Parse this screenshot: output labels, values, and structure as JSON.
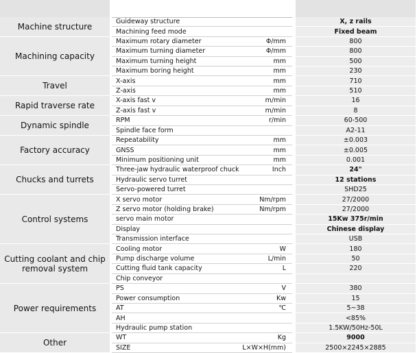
{
  "table": {
    "groups": [
      {
        "label": "Machine structure",
        "rows": [
          {
            "name": "Guideway structure",
            "value": "X, z rails",
            "bold": true
          },
          {
            "name": "Machining feed mode",
            "value": "Fixed beam",
            "bold": true
          }
        ]
      },
      {
        "label": "Machining capacity",
        "rows": [
          {
            "name": "Maximum rotary diameter",
            "unit": "Φ/mm",
            "value": "800"
          },
          {
            "name": "Maximum turning diameter",
            "unit": "Φ/mm",
            "value": "800"
          },
          {
            "name": "Maximum turning height",
            "unit": "mm",
            "value": "500"
          },
          {
            "name": "Maximum boring height",
            "unit": "mm",
            "value": "230"
          }
        ]
      },
      {
        "label": "Travel",
        "rows": [
          {
            "name": "X-axis",
            "unit": "mm",
            "value": "710"
          },
          {
            "name": "Z-axis",
            "unit": "mm",
            "value": "510"
          }
        ]
      },
      {
        "label": "Rapid traverse rate",
        "rows": [
          {
            "name": "X-axis fast v",
            "unit": "m/min",
            "value": "16"
          },
          {
            "name": "Z-axis fast v",
            "unit": "m/min",
            "value": "8"
          }
        ]
      },
      {
        "label": "Dynamic spindle",
        "rows": [
          {
            "name": "RPM",
            "unit": "r/min",
            "value": "60-500"
          },
          {
            "name": "Spindle face form",
            "value": "A2-11"
          }
        ]
      },
      {
        "label": "Factory accuracy",
        "rows": [
          {
            "name": "Repeatability",
            "unit": "mm",
            "value": "±0.003"
          },
          {
            "name": "GNSS",
            "unit": "mm",
            "value": "±0.005"
          },
          {
            "name": "Minimum positioning unit",
            "unit": "mm",
            "value": "0.001"
          }
        ]
      },
      {
        "label": "Chucks and turrets",
        "rows": [
          {
            "name": "Three-jaw hydraulic waterproof chuck",
            "unit": "Inch",
            "value": "24\"",
            "bold": true
          },
          {
            "name": "Hydraulic servo turret",
            "value": "12 stations",
            "bold": true
          },
          {
            "name": "Servo-powered turret",
            "value": "SHD25"
          }
        ]
      },
      {
        "label": "Control systems",
        "rows": [
          {
            "name": "X servo motor",
            "unit": "Nm/rpm",
            "value": "27/2000"
          },
          {
            "name": "Z servo motor (holding brake)",
            "unit": "Nm/rpm",
            "value": "27/2000"
          },
          {
            "name": "servo main motor",
            "value": "15Kw 375r/min",
            "bold": true
          },
          {
            "name": "Display",
            "value": "Chinese display",
            "bold": true
          },
          {
            "name": "Transmission interface",
            "value": "USB"
          }
        ]
      },
      {
        "label": "Cutting coolant and chip removal system",
        "rows": [
          {
            "name": "Cooling motor",
            "unit": "W",
            "value": "180"
          },
          {
            "name": "Pump discharge volume",
            "unit": "L/min",
            "value": "50"
          },
          {
            "name": "Cutting fluid tank capacity",
            "unit": "L",
            "value": "220"
          },
          {
            "name": "Chip conveyor"
          }
        ]
      },
      {
        "label": "Power requirements",
        "rows": [
          {
            "name": "PS",
            "unit": "V",
            "value": "380"
          },
          {
            "name": "Power consumption",
            "unit": "Kw",
            "value": "15"
          },
          {
            "name": "AT",
            "unit": "℃",
            "value": "5~38"
          },
          {
            "name": "AH",
            "value": "<85%"
          },
          {
            "name": "Hydraulic pump station",
            "value": "1.5KW/50Hz-50L"
          }
        ]
      },
      {
        "label": "Other",
        "rows": [
          {
            "name": "WT",
            "unit": "Kg",
            "value": "9000",
            "bold": true
          },
          {
            "name": "SIZE",
            "unit": "L×W×H(mm)",
            "value": "2500×2245×2885"
          }
        ]
      }
    ]
  }
}
